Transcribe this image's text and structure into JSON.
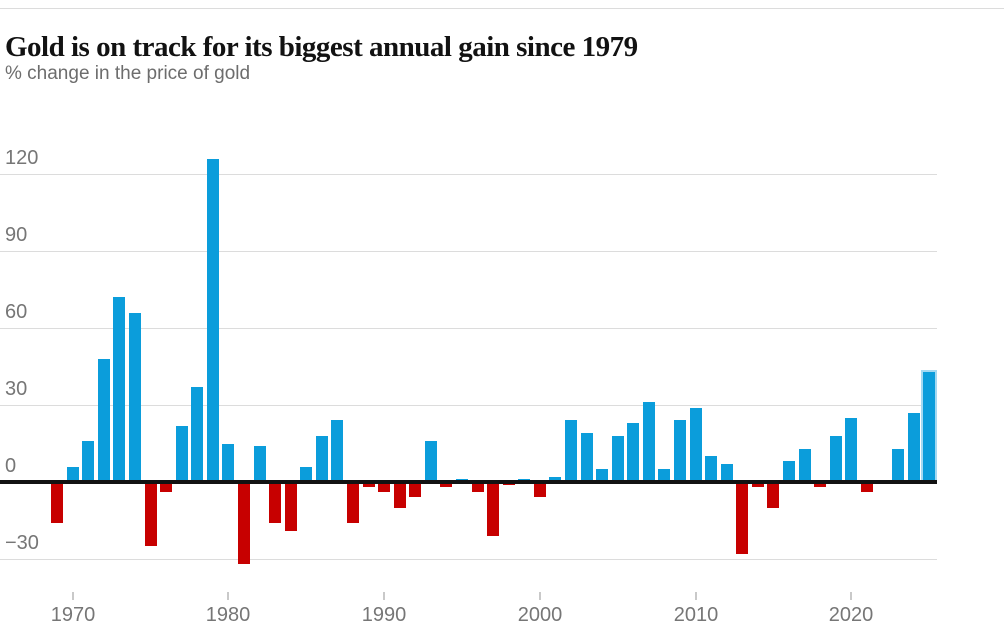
{
  "page": {
    "title": "Gold is on track for its biggest annual gain since 1979",
    "subtitle": "% change in the price of gold"
  },
  "chart_data": {
    "type": "bar",
    "title": "Gold is on track for its biggest annual gain since 1979",
    "subtitle": "% change in the price of gold",
    "ylabel": "% change",
    "unit": "%",
    "grid": true,
    "ylim": [
      -35,
      130
    ],
    "years": [
      1969,
      1970,
      1971,
      1972,
      1973,
      1974,
      1975,
      1976,
      1977,
      1978,
      1979,
      1980,
      1981,
      1982,
      1983,
      1984,
      1985,
      1986,
      1987,
      1988,
      1989,
      1990,
      1991,
      1992,
      1993,
      1994,
      1995,
      1996,
      1997,
      1998,
      1999,
      2000,
      2001,
      2002,
      2003,
      2004,
      2005,
      2006,
      2007,
      2008,
      2009,
      2010,
      2011,
      2012,
      2013,
      2014,
      2015,
      2016,
      2017,
      2018,
      2019,
      2020,
      2021,
      2022,
      2023,
      2024,
      2025
    ],
    "values": [
      -16,
      6,
      16,
      48,
      72,
      66,
      -25,
      -4,
      22,
      37,
      126,
      15,
      -32,
      14,
      -16,
      -19,
      6,
      18,
      24,
      -16,
      -2,
      -4,
      -10,
      -6,
      16,
      -2,
      1,
      -4,
      -21,
      -1,
      1,
      -6,
      2,
      24,
      19,
      5,
      18,
      23,
      31,
      5,
      24,
      29,
      10,
      7,
      -28,
      -2,
      -10,
      8,
      13,
      -2,
      18,
      25,
      -4,
      0,
      13,
      27,
      43
    ],
    "highlight_year": 2025,
    "yticks": [
      120,
      90,
      60,
      30,
      0,
      -30
    ],
    "ytick_labels": [
      "120",
      "90",
      "60",
      "30",
      "0",
      "−30"
    ],
    "xticks": [
      1970,
      1980,
      1990,
      2000,
      2010,
      2020
    ],
    "xtick_labels": [
      "1970",
      "1980",
      "1990",
      "2000",
      "2010",
      "2020"
    ],
    "colors": {
      "positive": "#0b9ddb",
      "negative": "#c70000",
      "highlight_outline": "#a3d9f2",
      "grid": "#dcdcdc",
      "zero_line": "#121212",
      "axis_text": "#767676"
    }
  }
}
